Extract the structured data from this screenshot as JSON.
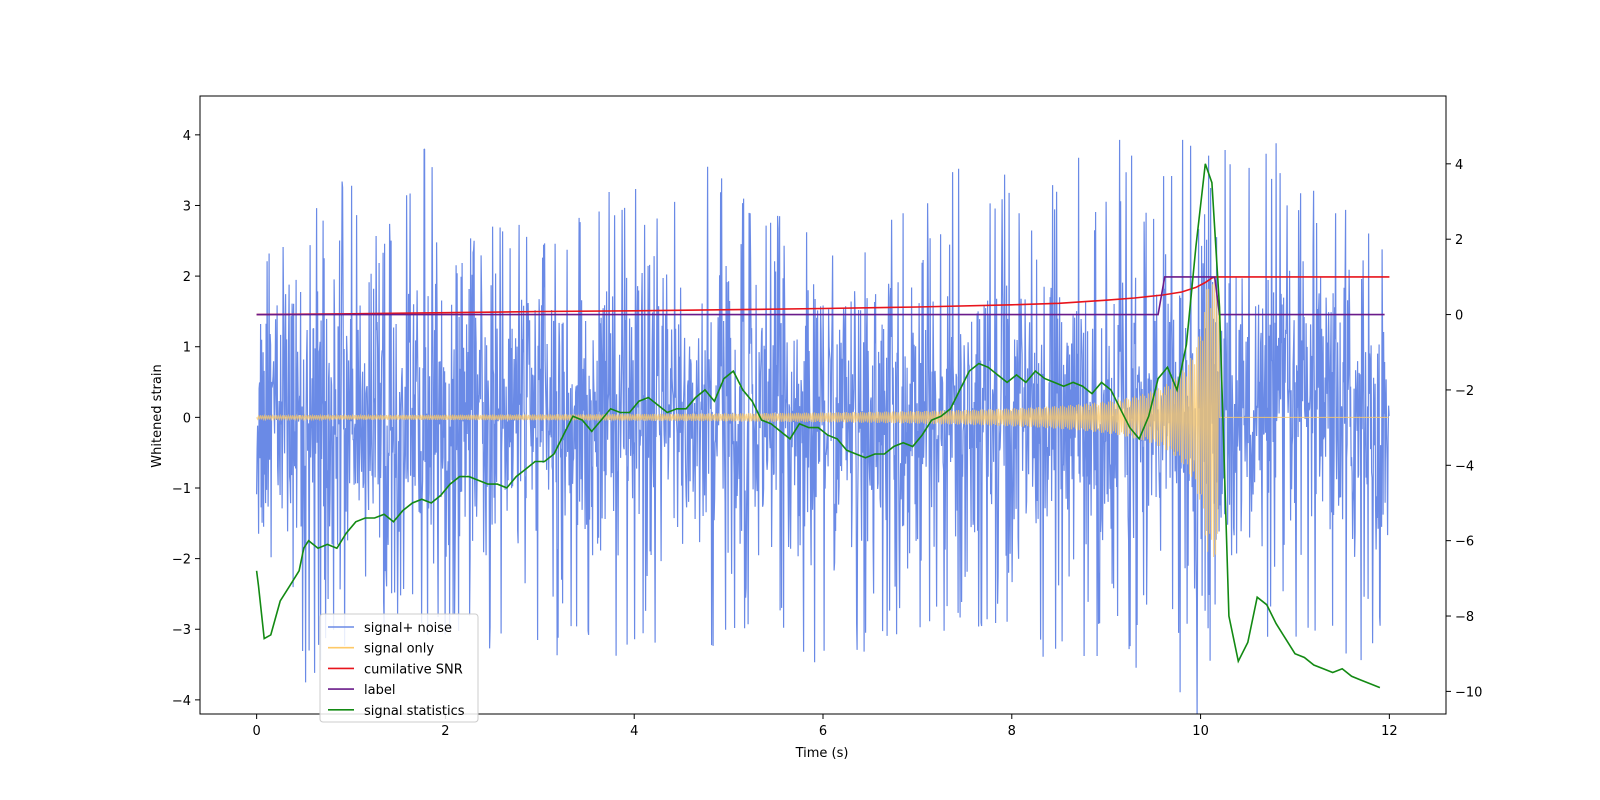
{
  "chart_data": {
    "type": "line",
    "xlabel": "Time (s)",
    "ylabel": "Whitened strain",
    "xlim": [
      -0.6,
      12.6
    ],
    "ylim": [
      -4.2,
      4.55
    ],
    "y2lim": [
      -10.6,
      5.8
    ],
    "xticks": [
      0,
      2,
      4,
      6,
      8,
      10,
      12
    ],
    "yticks": [
      -4,
      -3,
      -2,
      -1,
      0,
      1,
      2,
      3,
      4
    ],
    "y2ticks": [
      -10,
      -8,
      -6,
      -4,
      -2,
      0,
      2,
      4
    ],
    "legend_position": "lower-left",
    "series": [
      {
        "name": "signal+ noise",
        "axis": "left",
        "color": "#6a8ae6",
        "description_values": "dense noise band spanning roughly -4 to 4.2 across 0-12 s",
        "envelope": {
          "upper_peaks": [
            [
              0.0,
              2.45
            ],
            [
              0.3,
              2.6
            ],
            [
              0.5,
              2.7
            ],
            [
              0.9,
              3.6
            ],
            [
              1.3,
              2.5
            ],
            [
              1.75,
              4.2
            ],
            [
              2.1,
              2.3
            ],
            [
              2.6,
              2.9
            ],
            [
              3.1,
              2.6
            ],
            [
              3.6,
              3.1
            ],
            [
              3.9,
              3.4
            ],
            [
              4.45,
              3.05
            ],
            [
              4.8,
              3.7
            ],
            [
              5.2,
              3.2
            ],
            [
              5.6,
              2.8
            ],
            [
              6.0,
              2.6
            ],
            [
              6.5,
              3.05
            ],
            [
              6.8,
              2.9
            ],
            [
              7.25,
              3.7
            ],
            [
              7.6,
              3.3
            ],
            [
              8.0,
              3.5
            ],
            [
              8.3,
              2.8
            ],
            [
              8.55,
              3.6
            ],
            [
              8.95,
              3.5
            ],
            [
              9.2,
              4.0
            ],
            [
              9.5,
              2.9
            ],
            [
              9.9,
              3.5
            ],
            [
              10.4,
              4.0
            ],
            [
              10.9,
              3.9
            ],
            [
              11.3,
              3.1
            ],
            [
              11.75,
              3.05
            ],
            [
              12.0,
              2.6
            ]
          ],
          "lower_peaks": [
            [
              0.0,
              -2.0
            ],
            [
              0.3,
              -3.1
            ],
            [
              0.5,
              -3.8
            ],
            [
              0.9,
              -3.4
            ],
            [
              1.4,
              -2.9
            ],
            [
              1.9,
              -3.2
            ],
            [
              2.5,
              -3.4
            ],
            [
              3.0,
              -3.3
            ],
            [
              3.5,
              -3.4
            ],
            [
              4.0,
              -3.3
            ],
            [
              4.4,
              -3.2
            ],
            [
              4.8,
              -3.4
            ],
            [
              5.2,
              -3.0
            ],
            [
              5.6,
              -3.1
            ],
            [
              5.95,
              -3.65
            ],
            [
              6.5,
              -3.3
            ],
            [
              6.8,
              -3.2
            ],
            [
              7.2,
              -2.9
            ],
            [
              7.6,
              -3.1
            ],
            [
              8.1,
              -2.9
            ],
            [
              8.2,
              -3.8
            ],
            [
              8.6,
              -3.4
            ],
            [
              9.0,
              -3.3
            ],
            [
              9.5,
              -3.3
            ],
            [
              9.8,
              -3.7
            ],
            [
              10.1,
              -3.4
            ],
            [
              10.6,
              -3.5
            ],
            [
              10.9,
              -3.1
            ],
            [
              11.4,
              -3.3
            ],
            [
              11.8,
              -3.8
            ],
            [
              12.0,
              -2.7
            ]
          ]
        }
      },
      {
        "name": "signal only",
        "axis": "left",
        "color": "#fec967",
        "chirp": {
          "t_start": 0.0,
          "t_merge": 10.2,
          "t_end": 12.0,
          "amp_start": 0.03,
          "amp_peak": 2.0
        }
      },
      {
        "name": "cumilative SNR",
        "axis": "right",
        "color": "#e8141c",
        "x": [
          0,
          1,
          2,
          3,
          4,
          5,
          6,
          7,
          8,
          8.5,
          9,
          9.3,
          9.6,
          9.8,
          9.95,
          10.05,
          10.12,
          10.16,
          12.0
        ],
        "y": [
          0,
          0.02,
          0.05,
          0.08,
          0.1,
          0.13,
          0.16,
          0.2,
          0.26,
          0.3,
          0.38,
          0.44,
          0.52,
          0.6,
          0.72,
          0.85,
          0.97,
          1.0,
          1.0
        ]
      },
      {
        "name": "label",
        "axis": "right",
        "color": "#6a1b8a",
        "x": [
          0,
          9.55,
          9.62,
          10.15,
          10.2,
          11.95
        ],
        "y": [
          0,
          0,
          1,
          1,
          0,
          0
        ]
      },
      {
        "name": "signal statistics",
        "axis": "right",
        "color": "#138a13",
        "x": [
          0.0,
          0.02,
          0.08,
          0.15,
          0.25,
          0.35,
          0.45,
          0.5,
          0.55,
          0.65,
          0.75,
          0.85,
          0.95,
          1.05,
          1.15,
          1.25,
          1.35,
          1.45,
          1.55,
          1.65,
          1.75,
          1.85,
          1.95,
          2.05,
          2.15,
          2.25,
          2.35,
          2.45,
          2.55,
          2.65,
          2.75,
          2.85,
          2.95,
          3.05,
          3.15,
          3.25,
          3.35,
          3.45,
          3.55,
          3.65,
          3.75,
          3.85,
          3.95,
          4.05,
          4.15,
          4.25,
          4.35,
          4.45,
          4.55,
          4.65,
          4.75,
          4.85,
          4.95,
          5.05,
          5.15,
          5.25,
          5.35,
          5.45,
          5.55,
          5.65,
          5.75,
          5.85,
          5.95,
          6.05,
          6.15,
          6.25,
          6.35,
          6.45,
          6.55,
          6.65,
          6.75,
          6.85,
          6.95,
          7.05,
          7.15,
          7.25,
          7.35,
          7.45,
          7.55,
          7.65,
          7.75,
          7.85,
          7.95,
          8.05,
          8.15,
          8.25,
          8.35,
          8.45,
          8.55,
          8.65,
          8.75,
          8.85,
          8.95,
          9.05,
          9.15,
          9.25,
          9.35,
          9.45,
          9.55,
          9.65,
          9.75,
          9.85,
          9.95,
          10.05,
          10.12,
          10.2,
          10.3,
          10.4,
          10.5,
          10.6,
          10.7,
          10.8,
          10.9,
          11.0,
          11.1,
          11.2,
          11.3,
          11.4,
          11.5,
          11.6,
          11.7,
          11.8,
          11.9
        ],
        "y": [
          -6.8,
          -7.2,
          -8.6,
          -8.5,
          -7.6,
          -7.2,
          -6.8,
          -6.2,
          -6.0,
          -6.2,
          -6.1,
          -6.2,
          -5.8,
          -5.5,
          -5.4,
          -5.4,
          -5.3,
          -5.5,
          -5.2,
          -5.0,
          -4.9,
          -5.0,
          -4.8,
          -4.5,
          -4.3,
          -4.3,
          -4.4,
          -4.5,
          -4.5,
          -4.6,
          -4.3,
          -4.1,
          -3.9,
          -3.9,
          -3.7,
          -3.2,
          -2.7,
          -2.8,
          -3.1,
          -2.8,
          -2.5,
          -2.6,
          -2.6,
          -2.3,
          -2.2,
          -2.4,
          -2.6,
          -2.5,
          -2.5,
          -2.2,
          -2.0,
          -2.3,
          -1.7,
          -1.5,
          -2.0,
          -2.3,
          -2.8,
          -2.9,
          -3.1,
          -3.3,
          -2.9,
          -3.0,
          -3.0,
          -3.2,
          -3.3,
          -3.6,
          -3.7,
          -3.8,
          -3.7,
          -3.7,
          -3.5,
          -3.4,
          -3.5,
          -3.2,
          -2.8,
          -2.7,
          -2.5,
          -2.0,
          -1.5,
          -1.3,
          -1.4,
          -1.6,
          -1.8,
          -1.6,
          -1.8,
          -1.5,
          -1.7,
          -1.8,
          -1.9,
          -1.8,
          -1.9,
          -2.1,
          -1.8,
          -2.0,
          -2.5,
          -3.0,
          -3.3,
          -2.7,
          -1.7,
          -1.4,
          -2.0,
          -0.8,
          1.8,
          4.0,
          3.5,
          0.2,
          -8.0,
          -9.2,
          -8.7,
          -7.5,
          -7.7,
          -8.2,
          -8.6,
          -9.0,
          -9.1,
          -9.3,
          -9.4,
          -9.5,
          -9.4,
          -9.6,
          -9.7,
          -9.8,
          -9.9
        ]
      }
    ]
  }
}
